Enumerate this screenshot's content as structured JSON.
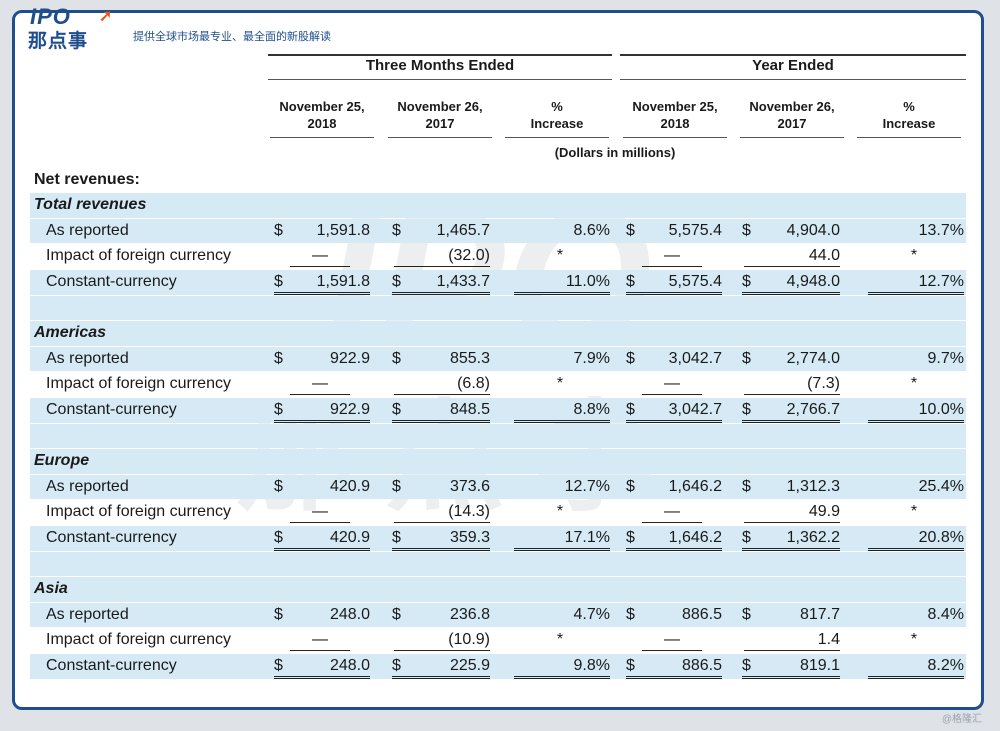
{
  "header": {
    "logo_ipo": "IPO",
    "logo_cn": "那点事",
    "tagline": "提供全球市场最专业、最全面的新股解读",
    "credit": "@格隆汇"
  },
  "table": {
    "group_three_months": "Three Months Ended",
    "group_year": "Year Ended",
    "col_headers": [
      "November 25,\n2018",
      "November 26,\n2017",
      "%\nIncrease",
      "November 25,\n2018",
      "November 26,\n2017",
      "%\nIncrease"
    ],
    "col_headers_lines": [
      [
        "November 25,",
        "2018"
      ],
      [
        "November 26,",
        "2017"
      ],
      [
        "%",
        "Increase"
      ],
      [
        "November 25,",
        "2018"
      ],
      [
        "November 26,",
        "2017"
      ],
      [
        "%",
        "Increase"
      ]
    ],
    "units": "(Dollars in millions)",
    "title": "Net revenues:",
    "sections": [
      {
        "name": "Total revenues",
        "rows": [
          {
            "label": "As reported",
            "v": [
              "1,591.8",
              "1,465.7",
              "8.6%",
              "5,575.4",
              "4,904.0",
              "13.7%"
            ]
          },
          {
            "label": "Impact of foreign currency",
            "v": [
              "—",
              "(32.0)",
              "*",
              "—",
              "44.0",
              "*"
            ]
          },
          {
            "label": "Constant-currency",
            "v": [
              "1,591.8",
              "1,433.7",
              "11.0%",
              "5,575.4",
              "4,948.0",
              "12.7%"
            ]
          }
        ]
      },
      {
        "name": "Americas",
        "rows": [
          {
            "label": "As reported",
            "v": [
              "922.9",
              "855.3",
              "7.9%",
              "3,042.7",
              "2,774.0",
              "9.7%"
            ]
          },
          {
            "label": "Impact of foreign currency",
            "v": [
              "—",
              "(6.8)",
              "*",
              "—",
              "(7.3)",
              "*"
            ]
          },
          {
            "label": "Constant-currency",
            "v": [
              "922.9",
              "848.5",
              "8.8%",
              "3,042.7",
              "2,766.7",
              "10.0%"
            ]
          }
        ]
      },
      {
        "name": "Europe",
        "rows": [
          {
            "label": "As reported",
            "v": [
              "420.9",
              "373.6",
              "12.7%",
              "1,646.2",
              "1,312.3",
              "25.4%"
            ]
          },
          {
            "label": "Impact of foreign currency",
            "v": [
              "—",
              "(14.3)",
              "*",
              "—",
              "49.9",
              "*"
            ]
          },
          {
            "label": "Constant-currency",
            "v": [
              "420.9",
              "359.3",
              "17.1%",
              "1,646.2",
              "1,362.2",
              "20.8%"
            ]
          }
        ]
      },
      {
        "name": "Asia",
        "rows": [
          {
            "label": "As reported",
            "v": [
              "248.0",
              "236.8",
              "4.7%",
              "886.5",
              "817.7",
              "8.4%"
            ]
          },
          {
            "label": "Impact of foreign currency",
            "v": [
              "—",
              "(10.9)",
              "*",
              "—",
              "1.4",
              "*"
            ]
          },
          {
            "label": "Constant-currency",
            "v": [
              "248.0",
              "225.9",
              "9.8%",
              "886.5",
              "819.1",
              "8.2%"
            ]
          }
        ]
      }
    ],
    "dollar_sign": "$"
  },
  "colors": {
    "brand_blue": "#1f4e8c",
    "band_blue": "#d6eaf6",
    "accent_orange": "#e35a1c"
  }
}
